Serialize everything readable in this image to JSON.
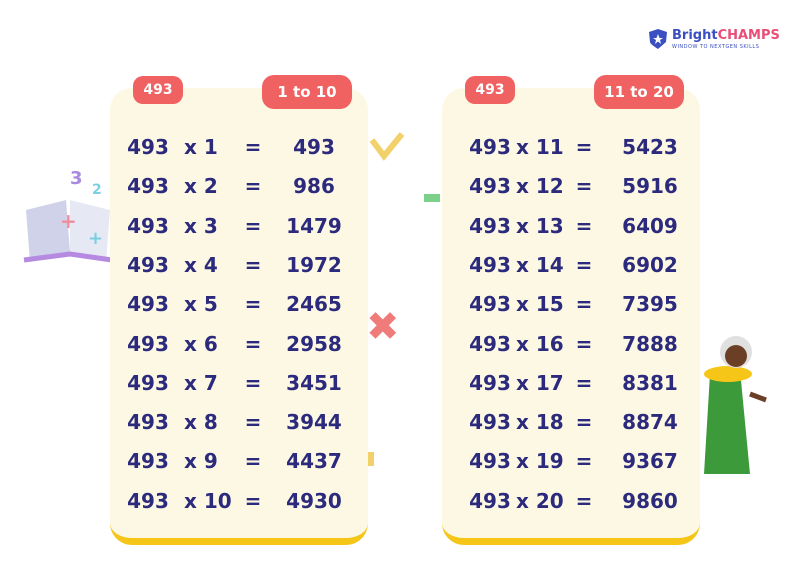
{
  "logo": {
    "brand_a": "Bright",
    "brand_b": "CHAMPS",
    "tagline": "WINDOW TO NEXTGEN SKILLS"
  },
  "decor_digits": [
    "3",
    "2"
  ],
  "tables": [
    {
      "badge": "493",
      "range": "1 to 10",
      "rows": [
        [
          "493",
          "x 1",
          "=",
          "493"
        ],
        [
          "493",
          "x 2",
          "=",
          "986"
        ],
        [
          "493",
          "x 3",
          "=",
          "1479"
        ],
        [
          "493",
          "x 4",
          "=",
          "1972"
        ],
        [
          "493",
          "x 5",
          "=",
          "2465"
        ],
        [
          "493",
          "x 6",
          "=",
          "2958"
        ],
        [
          "493",
          "x 7",
          "=",
          "3451"
        ],
        [
          "493",
          "x 8",
          "=",
          "3944"
        ],
        [
          "493",
          "x 9",
          "=",
          "4437"
        ],
        [
          "493",
          "x 10",
          "=",
          "4930"
        ]
      ]
    },
    {
      "badge": "493",
      "range": "11 to 20",
      "rows": [
        [
          "493",
          "x 11",
          "=",
          "5423"
        ],
        [
          "493",
          "x 12",
          "=",
          "5916"
        ],
        [
          "493",
          "x 13",
          "=",
          "6409"
        ],
        [
          "493",
          "x 14",
          "=",
          "6902"
        ],
        [
          "493",
          "x 15",
          "=",
          "7395"
        ],
        [
          "493",
          "x 16",
          "=",
          "7888"
        ],
        [
          "493",
          "x 17",
          "=",
          "8381"
        ],
        [
          "493",
          "x 18",
          "=",
          "8874"
        ],
        [
          "493",
          "x 19",
          "=",
          "9367"
        ],
        [
          "493",
          "x 20",
          "=",
          "9860"
        ]
      ]
    }
  ]
}
